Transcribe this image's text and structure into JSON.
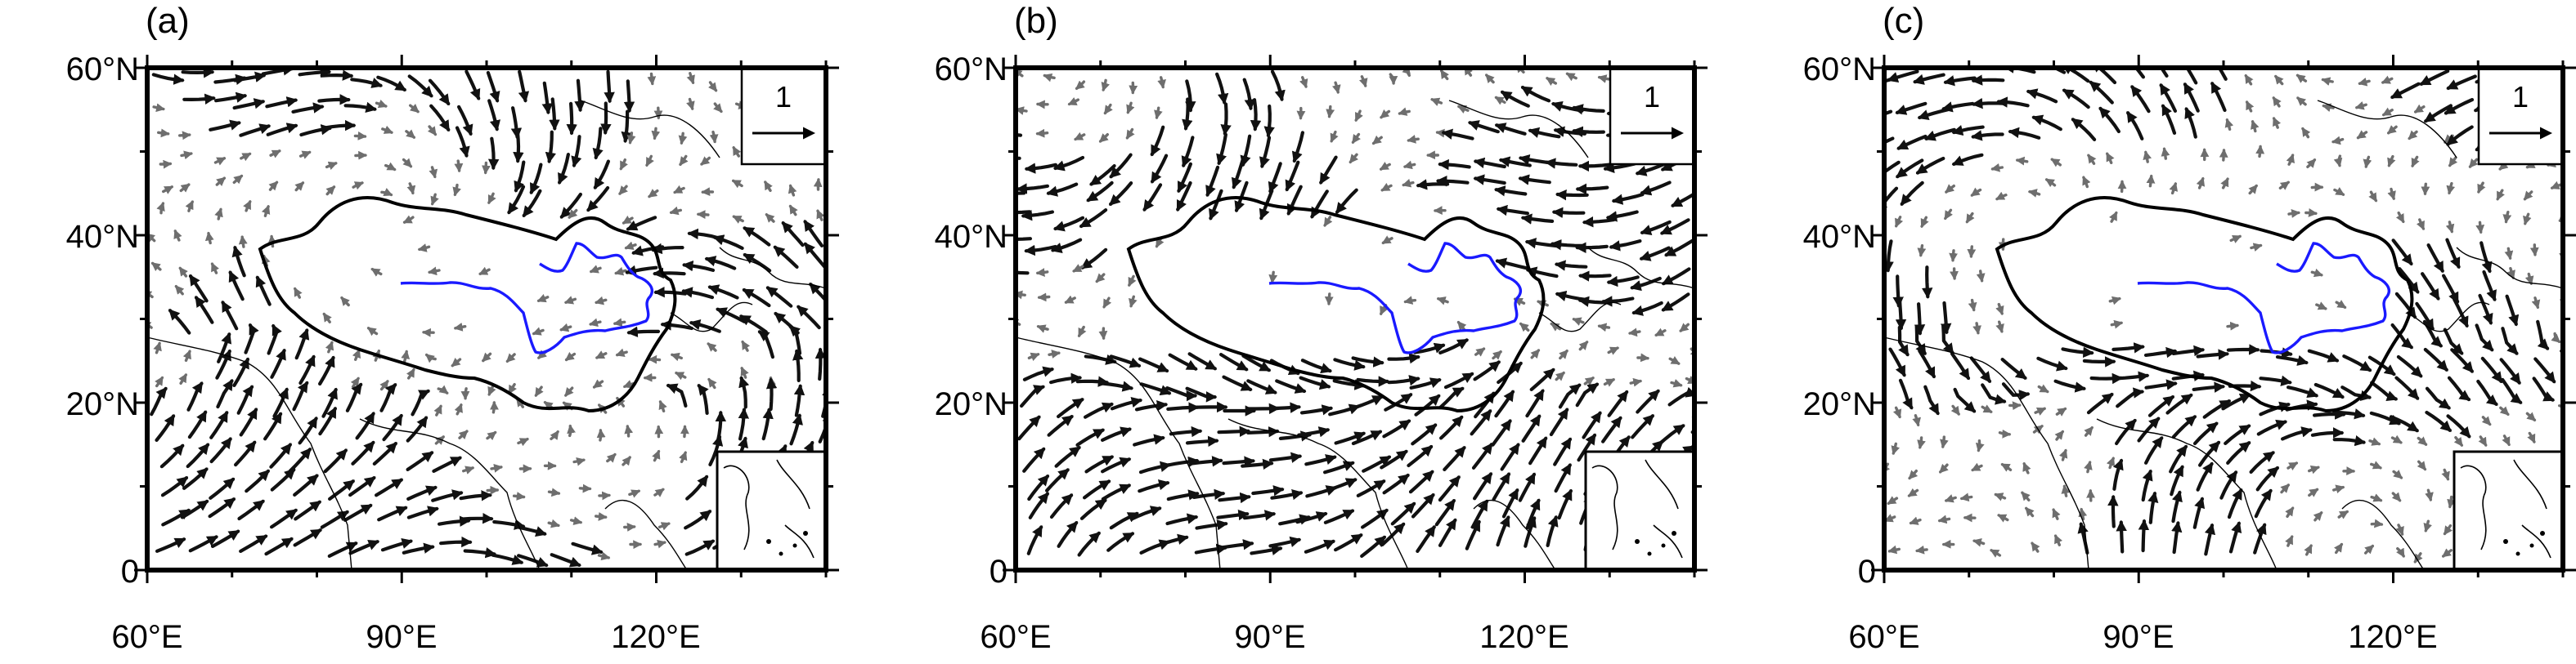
{
  "figure": {
    "panels": [
      {
        "label": "(a)",
        "seed": 11
      },
      {
        "label": "(b)",
        "seed": 23
      },
      {
        "label": "(c)",
        "seed": 37
      }
    ],
    "x_ticks": [
      "60°E",
      "90°E",
      "120°E"
    ],
    "y_ticks": [
      "60°N",
      "40°N",
      "20°N",
      "0"
    ],
    "reference_vector": {
      "value": "1"
    },
    "extent": {
      "lon": [
        60,
        140
      ],
      "lat": [
        0,
        60
      ]
    },
    "colors": {
      "vectors_dark": "#111111",
      "vectors_gray": "#6e6e6e",
      "river": "#1a1aff",
      "border": "#000000"
    }
  }
}
